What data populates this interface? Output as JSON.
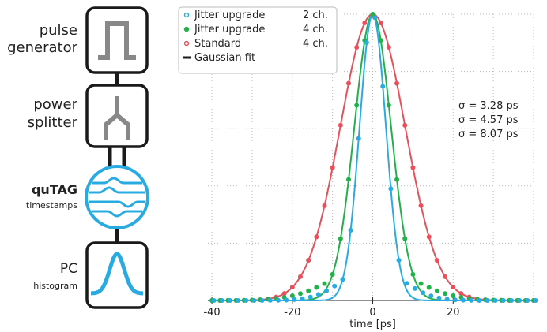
{
  "diagram": {
    "pulse_label": "pulse generator",
    "pulse_line1": "pulse",
    "pulse_line2": "generator",
    "splitter_line1": "power",
    "splitter_line2": "splitter",
    "qutag_title": "quTAG",
    "qutag_sub": "timestamps",
    "pc_title": "PC",
    "pc_sub": "histogram"
  },
  "colors": {
    "blue": "#29abe2",
    "green": "#22b04b",
    "red": "#e8505b",
    "frame": "#1a1a1a",
    "icon_gray": "#888888"
  },
  "chart_data": {
    "type": "scatter",
    "xlabel": "time [ps]",
    "ylabel": "",
    "title": "",
    "xlim": [
      -41,
      40
    ],
    "ylim": [
      0,
      1.0
    ],
    "xticks": [
      -40,
      -20,
      0,
      20
    ],
    "grid": true,
    "legend_position": "top-left",
    "legend": [
      {
        "name": "Jitter upgrade",
        "channels": "2 ch.",
        "marker": "circle-open",
        "color": "#29abe2"
      },
      {
        "name": "Jitter upgrade",
        "channels": "4 ch.",
        "marker": "circle",
        "color": "#22b04b"
      },
      {
        "name": "Standard",
        "channels": "4 ch.",
        "marker": "circle-open",
        "color": "#e8505b"
      },
      {
        "name": "Gaussian fit",
        "channels": "",
        "marker": "line",
        "color": "#1a1a1a"
      }
    ],
    "annotations": [
      "σ = 3.28 ps",
      "σ = 4.57 ps",
      "σ = 8.07 ps"
    ],
    "series": [
      {
        "name": "Jitter upgrade 2 ch.",
        "sigma": 3.28,
        "center": 0,
        "peak": 1.0,
        "color": "#29abe2"
      },
      {
        "name": "Jitter upgrade 4 ch.",
        "sigma": 4.57,
        "center": 0,
        "peak": 1.0,
        "color": "#22b04b"
      },
      {
        "name": "Standard 4 ch.",
        "sigma": 8.07,
        "center": 0,
        "peak": 1.0,
        "color": "#e8505b"
      }
    ]
  }
}
